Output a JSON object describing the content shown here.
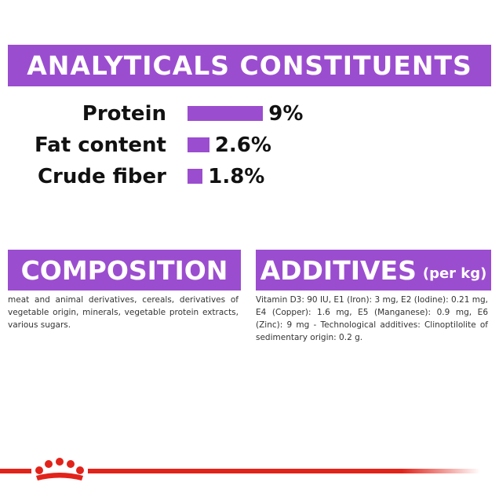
{
  "analyticals": {
    "title": "ANALYTICALS CONSTITUENTS",
    "items": [
      {
        "label": "Protein",
        "value": 9,
        "value_label": "9%"
      },
      {
        "label": "Fat content",
        "value": 2.6,
        "value_label": "2.6%"
      },
      {
        "label": "Crude fiber",
        "value": 1.8,
        "value_label": "1.8%"
      }
    ]
  },
  "composition": {
    "title": "COMPOSITION",
    "text": "meat and animal derivatives, cereals, derivatives of vegetable origin, minerals, vegetable protein extracts, various sugars."
  },
  "additives": {
    "title": "ADDITIVES",
    "unit": "(per kg)",
    "text": "Vitamin D3: 90 IU, E1 (Iron): 3 mg, E2 (Iodine): 0.21 mg, E4 (Copper): 1.6 mg, E5 (Manganese): 0.9 mg, E6 (Zinc): 9 mg - Technological additives: Clinoptilolite of sedimentary origin: 0.2 g."
  }
}
